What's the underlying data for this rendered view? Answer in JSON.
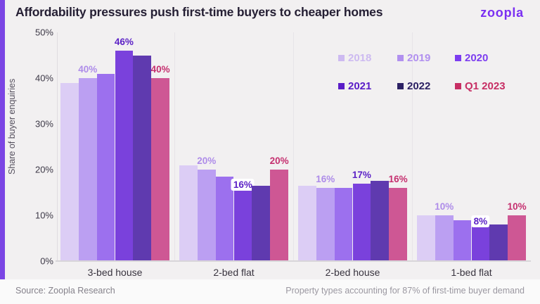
{
  "header": {
    "title": "Affordability pressures push first-time buyers to cheaper homes",
    "logo_text": "zoopla"
  },
  "footer": {
    "source": "Source: Zoopla Research",
    "note": "Property types accounting for 87% of first-time buyer demand"
  },
  "colors": {
    "accent_stripe": "#7b45e4",
    "background": "#f2f0f1",
    "footer_background": "#fafafa",
    "logo": "#7a2ff2",
    "title": "#241e33",
    "baseline": "#d8d5d9"
  },
  "chart_data": {
    "type": "bar",
    "title": "Affordability pressures push first-time buyers to cheaper homes",
    "ylabel": "Share of buyer enquiries",
    "xlabel": "",
    "ylim": [
      0,
      50
    ],
    "yticks": [
      0,
      10,
      20,
      30,
      40,
      50
    ],
    "ytick_suffix": "%",
    "grid": "none",
    "legend_position": "top-right, two rows",
    "categories": [
      "3-bed house",
      "2-bed flat",
      "2-bed house",
      "1-bed flat"
    ],
    "series": [
      {
        "name": "2018",
        "color": "#dccdf5",
        "legend_color": "#cdbaf1",
        "values": [
          39,
          21,
          16.5,
          10
        ]
      },
      {
        "name": "2019",
        "color": "#bb9ff2",
        "legend_color": "#b190ef",
        "label_color": "#ae8ce9",
        "values": [
          40,
          20,
          16,
          10
        ],
        "labels": [
          "40%",
          "20%",
          "16%",
          "10%"
        ]
      },
      {
        "name": "2020",
        "color": "#9c70ee",
        "legend_color": "#7c3cf0",
        "values": [
          41,
          18.5,
          16,
          9
        ]
      },
      {
        "name": "2021",
        "color": "#7a41dc",
        "legend_color": "#5a1dc8",
        "label_color": "#5c22c6",
        "values": [
          46,
          16,
          17,
          8
        ],
        "labels": [
          "46%",
          "16%",
          "17%",
          "8%"
        ],
        "boxed_labels": [
          false,
          true,
          false,
          true
        ]
      },
      {
        "name": "2022",
        "color": "#5f3aaf",
        "legend_color": "#2c2164",
        "values": [
          45,
          16.5,
          17.5,
          8
        ]
      },
      {
        "name": "Q1 2023",
        "color": "#ce5794",
        "legend_color": "#c72e64",
        "label_color": "#c52f6f",
        "values": [
          40,
          20,
          16,
          10
        ],
        "labels": [
          "40%",
          "20%",
          "16%",
          "10%"
        ]
      }
    ],
    "legend_rows": [
      [
        "2018",
        "2019",
        "2020"
      ],
      [
        "2021",
        "2022",
        "Q1 2023"
      ]
    ]
  }
}
